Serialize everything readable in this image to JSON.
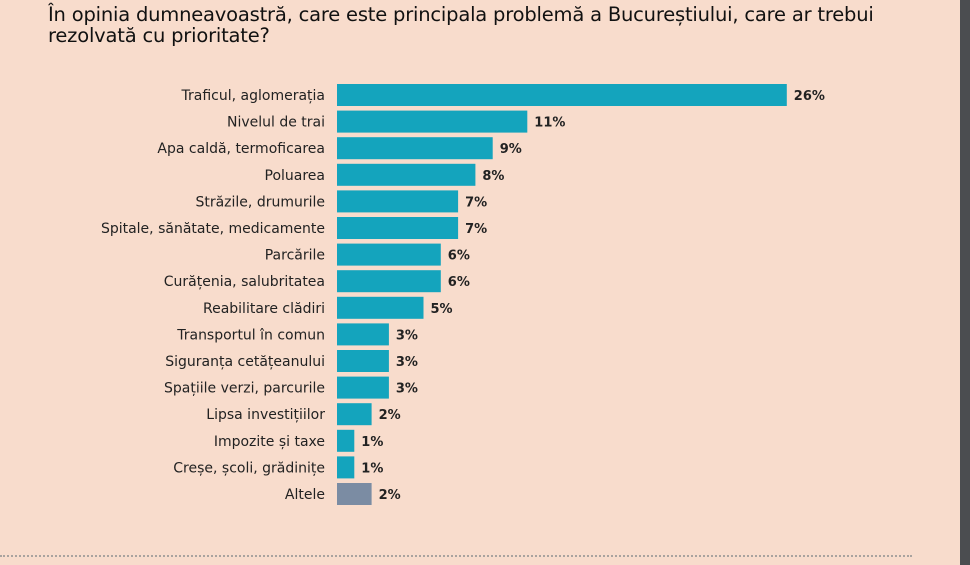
{
  "chart_data": {
    "type": "bar",
    "orientation": "horizontal",
    "title": "În opinia dumneavoastră, care este principala problemă a Bucureștiului, care ar trebui rezolvată cu prioritate?",
    "categories": [
      "Traficul, aglomerația",
      "Nivelul de trai",
      "Apa caldă, termoficarea",
      "Poluarea",
      "Străzile, drumurile",
      "Spitale, sănătate, medicamente",
      "Parcările",
      "Curățenia, salubritatea",
      "Reabilitare clădiri",
      "Transportul în comun",
      "Siguranța cetățeanului",
      "Spațiile verzi, parcurile",
      "Lipsa investițiilor",
      "Impozite și taxe",
      "Creșe, școli, grădinițe",
      "Altele"
    ],
    "values": [
      26,
      11,
      9,
      8,
      7,
      7,
      6,
      6,
      5,
      3,
      3,
      3,
      2,
      1,
      1,
      2
    ],
    "value_labels": [
      "26%",
      "11%",
      "9%",
      "8%",
      "7%",
      "7%",
      "6%",
      "6%",
      "5%",
      "3%",
      "3%",
      "3%",
      "2%",
      "1%",
      "1%",
      "2%"
    ],
    "unit": "%",
    "grid": false,
    "colors": {
      "bar": "#14a4bd",
      "other_bar": "#7b8ca3",
      "background": "#f8dccc"
    }
  }
}
